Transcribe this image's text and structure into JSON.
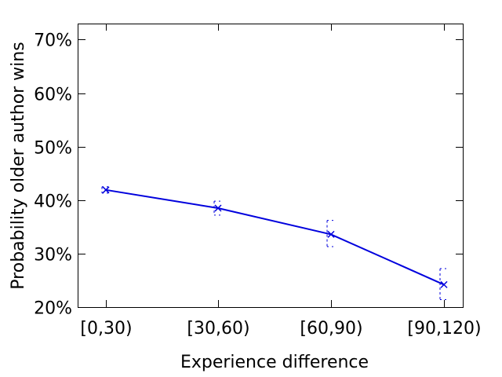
{
  "chart_data": {
    "type": "line",
    "title": "",
    "xlabel": "Experience difference",
    "ylabel": "Probability older author wins",
    "categories": [
      "[0,30)",
      "[30,60)",
      "[60,90)",
      "[90,120)"
    ],
    "series": [
      {
        "values": [
          41.9,
          38.5,
          33.6,
          24.2
        ],
        "error_low": [
          41.3,
          37.2,
          31.3,
          21.4
        ],
        "error_high": [
          42.5,
          39.8,
          36.2,
          27.2
        ],
        "color": "#0000dd"
      }
    ],
    "ylim": [
      20,
      73
    ],
    "yticks": [
      20,
      30,
      40,
      50,
      60,
      70
    ],
    "ytick_labels": [
      "20%",
      "30%",
      "40%",
      "50%",
      "60%",
      "70%"
    ],
    "grid": false,
    "legend": "none"
  }
}
